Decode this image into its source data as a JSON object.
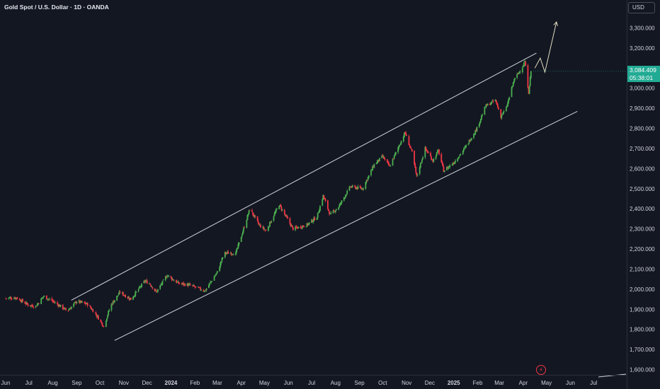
{
  "header": {
    "symbol_title": "Gold Spot / U.S. Dollar · 1D · OANDA",
    "currency": "USD"
  },
  "price_tag": {
    "price": "3,084.409",
    "countdown": "05:38:01"
  },
  "colors": {
    "background": "#131722",
    "up_candle": "#4caf50",
    "down_candle": "#f23645",
    "trendline": "#d1d4dc",
    "price_tag": "#22ab94"
  },
  "icons": {
    "alert": "lightning-bolt-icon"
  },
  "chart_data": {
    "type": "candlestick",
    "title": "Gold Spot / U.S. Dollar · 1D · OANDA",
    "y_axis": {
      "range": [
        1560,
        3400
      ],
      "ticks": [
        {
          "value": 3300,
          "label": "3,300.000"
        },
        {
          "value": 3200,
          "label": "3,200.000"
        },
        {
          "value": 3100,
          "label": "3,100.000"
        },
        {
          "value": 3000,
          "label": "3,000.000"
        },
        {
          "value": 2900,
          "label": "2,900.000"
        },
        {
          "value": 2800,
          "label": "2,800.000"
        },
        {
          "value": 2700,
          "label": "2,700.000"
        },
        {
          "value": 2600,
          "label": "2,600.000"
        },
        {
          "value": 2500,
          "label": "2,500.000"
        },
        {
          "value": 2400,
          "label": "2,400.000"
        },
        {
          "value": 2300,
          "label": "2,300.000"
        },
        {
          "value": 2200,
          "label": "2,200.000"
        },
        {
          "value": 2100,
          "label": "2,100.000"
        },
        {
          "value": 2000,
          "label": "2,000.000"
        },
        {
          "value": 1900,
          "label": "1,900.000"
        },
        {
          "value": 1800,
          "label": "1,800.000"
        },
        {
          "value": 1700,
          "label": "1,700.000"
        },
        {
          "value": 1600,
          "label": "1,600.000"
        }
      ]
    },
    "x_axis": {
      "range": [
        "2023-06-01",
        "2025-08-01"
      ],
      "ticks": [
        {
          "date": "2023-06-01",
          "label": "Jun"
        },
        {
          "date": "2023-07-01",
          "label": "Jul"
        },
        {
          "date": "2023-08-01",
          "label": "Aug"
        },
        {
          "date": "2023-09-01",
          "label": "Sep"
        },
        {
          "date": "2023-10-01",
          "label": "Oct"
        },
        {
          "date": "2023-11-01",
          "label": "Nov"
        },
        {
          "date": "2023-12-01",
          "label": "Dec"
        },
        {
          "date": "2024-01-01",
          "label": "2024",
          "bold": true
        },
        {
          "date": "2024-02-01",
          "label": "Feb"
        },
        {
          "date": "2024-03-01",
          "label": "Mar"
        },
        {
          "date": "2024-04-01",
          "label": "Apr"
        },
        {
          "date": "2024-05-01",
          "label": "May"
        },
        {
          "date": "2024-06-01",
          "label": "Jun"
        },
        {
          "date": "2024-07-01",
          "label": "Jul"
        },
        {
          "date": "2024-08-01",
          "label": "Aug"
        },
        {
          "date": "2024-09-01",
          "label": "Sep"
        },
        {
          "date": "2024-10-01",
          "label": "Oct"
        },
        {
          "date": "2024-11-01",
          "label": "Nov"
        },
        {
          "date": "2024-12-01",
          "label": "Dec"
        },
        {
          "date": "2025-01-01",
          "label": "2025",
          "bold": true
        },
        {
          "date": "2025-02-01",
          "label": "Feb"
        },
        {
          "date": "2025-03-01",
          "label": "Mar"
        },
        {
          "date": "2025-04-01",
          "label": "Apr"
        },
        {
          "date": "2025-05-01",
          "label": "May"
        },
        {
          "date": "2025-06-01",
          "label": "Jun"
        },
        {
          "date": "2025-07-01",
          "label": "Jul"
        }
      ]
    },
    "close_path": [
      [
        "2023-06-01",
        1955
      ],
      [
        "2023-06-15",
        1958
      ],
      [
        "2023-07-01",
        1920
      ],
      [
        "2023-07-10",
        1915
      ],
      [
        "2023-07-20",
        1965
      ],
      [
        "2023-08-01",
        1940
      ],
      [
        "2023-08-20",
        1892
      ],
      [
        "2023-09-01",
        1940
      ],
      [
        "2023-09-15",
        1925
      ],
      [
        "2023-09-25",
        1880
      ],
      [
        "2023-10-06",
        1815
      ],
      [
        "2023-10-15",
        1920
      ],
      [
        "2023-10-27",
        1985
      ],
      [
        "2023-11-10",
        1950
      ],
      [
        "2023-11-28",
        2040
      ],
      [
        "2023-12-04",
        2030
      ],
      [
        "2023-12-13",
        1985
      ],
      [
        "2023-12-27",
        2070
      ],
      [
        "2024-01-10",
        2030
      ],
      [
        "2024-01-25",
        2020
      ],
      [
        "2024-02-14",
        1992
      ],
      [
        "2024-03-01",
        2085
      ],
      [
        "2024-03-10",
        2180
      ],
      [
        "2024-03-25",
        2180
      ],
      [
        "2024-04-04",
        2300
      ],
      [
        "2024-04-12",
        2400
      ],
      [
        "2024-04-24",
        2320
      ],
      [
        "2024-05-03",
        2290
      ],
      [
        "2024-05-20",
        2420
      ],
      [
        "2024-06-07",
        2300
      ],
      [
        "2024-06-25",
        2320
      ],
      [
        "2024-07-08",
        2360
      ],
      [
        "2024-07-16",
        2465
      ],
      [
        "2024-07-25",
        2370
      ],
      [
        "2024-08-05",
        2410
      ],
      [
        "2024-08-20",
        2510
      ],
      [
        "2024-09-05",
        2500
      ],
      [
        "2024-09-20",
        2620
      ],
      [
        "2024-10-01",
        2660
      ],
      [
        "2024-10-10",
        2610
      ],
      [
        "2024-10-30",
        2780
      ],
      [
        "2024-11-08",
        2680
      ],
      [
        "2024-11-14",
        2560
      ],
      [
        "2024-11-25",
        2700
      ],
      [
        "2024-12-05",
        2640
      ],
      [
        "2024-12-12",
        2690
      ],
      [
        "2024-12-19",
        2590
      ],
      [
        "2025-01-01",
        2630
      ],
      [
        "2025-01-15",
        2700
      ],
      [
        "2025-01-31",
        2800
      ],
      [
        "2025-02-11",
        2910
      ],
      [
        "2025-02-24",
        2940
      ],
      [
        "2025-03-03",
        2860
      ],
      [
        "2025-03-10",
        2900
      ],
      [
        "2025-03-20",
        3040
      ],
      [
        "2025-04-01",
        3115
      ],
      [
        "2025-04-03",
        3135
      ],
      [
        "2025-04-08",
        2980
      ],
      [
        "2025-04-11",
        3084
      ]
    ],
    "channel_upper": [
      [
        "2023-08-25",
        1945
      ],
      [
        "2025-04-18",
        3175
      ]
    ],
    "channel_lower": [
      [
        "2023-10-20",
        1745
      ],
      [
        "2025-06-10",
        2885
      ]
    ],
    "projection_path": [
      [
        "2025-04-16",
        3100
      ],
      [
        "2025-04-23",
        3150
      ],
      [
        "2025-04-29",
        3080
      ],
      [
        "2025-05-14",
        3330
      ]
    ],
    "last_price": 3084.409,
    "grid": false
  }
}
